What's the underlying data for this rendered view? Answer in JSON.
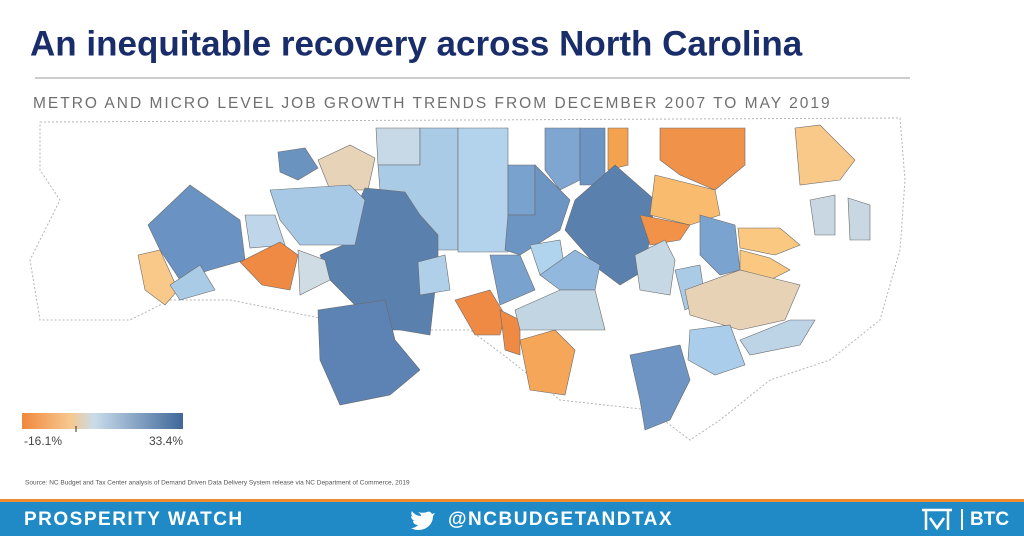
{
  "header": {
    "title": "An inequitable recovery across North Carolina",
    "subtitle": "METRO AND MICRO LEVEL JOB GROWTH TRENDS FROM DECEMBER 2007 TO MAY 2019"
  },
  "legend": {
    "min": "-16.1%",
    "max": "33.4%"
  },
  "source": "Source: NC Budget and Tax Center analysis of Demand Driven Data Delivery System release via NC Department of Commerce, 2019",
  "footer": {
    "brand": "PROSPERITY WATCH",
    "handle": "@NCBUDGETANDTAX",
    "logo": "BTC"
  }
}
